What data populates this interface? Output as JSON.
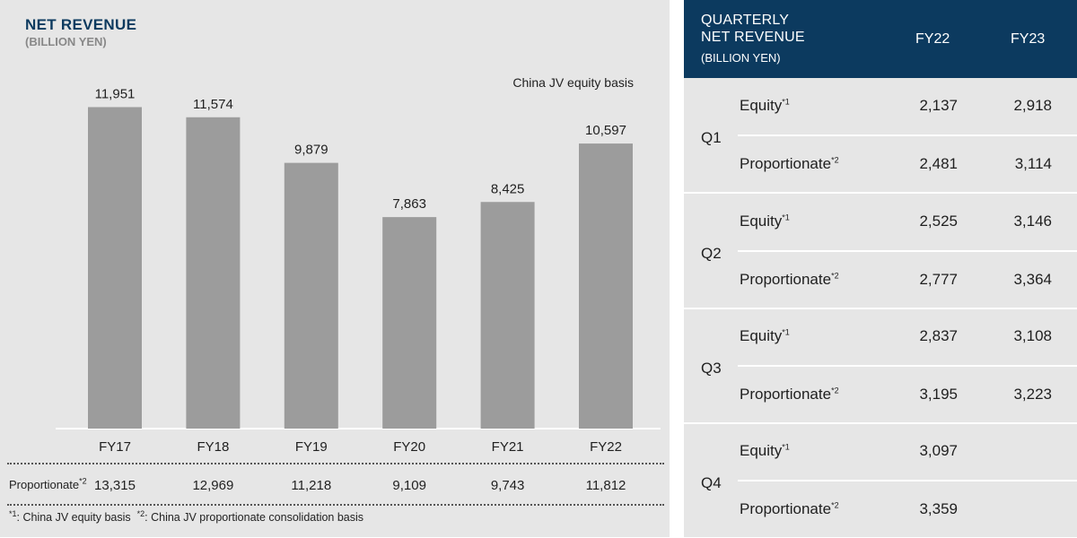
{
  "chart_data": {
    "type": "bar",
    "title": "NET REVENUE",
    "subtitle": "(BILLION YEN)",
    "annotation": "China JV equity basis",
    "categories": [
      "FY17",
      "FY18",
      "FY19",
      "FY20",
      "FY21",
      "FY22"
    ],
    "values": [
      11951,
      11574,
      9879,
      7863,
      8425,
      10597
    ],
    "value_labels": [
      "11,951",
      "11,574",
      "9,879",
      "7,863",
      "8,425",
      "10,597"
    ],
    "ylim": [
      0,
      13000
    ],
    "grid": false,
    "bar_color": "#9c9c9c",
    "proportionate_row": {
      "label": "Proportionate",
      "footnote_mark": "*2",
      "values": [
        "13,315",
        "12,969",
        "11,218",
        "9,109",
        "9,743",
        "11,812"
      ]
    },
    "footnotes": {
      "mark1": "*1",
      "text1": ": China JV equity basis",
      "mark2": "*2",
      "text2": ": China JV proportionate consolidation basis"
    }
  },
  "table": {
    "header_line1": "QUARTERLY",
    "header_line2": "NET REVENUE",
    "header_unit": "(BILLION YEN)",
    "columns": [
      "FY22",
      "FY23"
    ],
    "header_color": "#0c3a5f",
    "quarters": [
      {
        "label": "Q1",
        "rows": [
          {
            "label": "Equity",
            "mark": "*1",
            "fy22": "2,137",
            "fy23": "2,918"
          },
          {
            "label": "Proportionate",
            "mark": "*2",
            "fy22": "2,481",
            "fy23": "3,114"
          }
        ]
      },
      {
        "label": "Q2",
        "rows": [
          {
            "label": "Equity",
            "mark": "*1",
            "fy22": "2,525",
            "fy23": "3,146"
          },
          {
            "label": "Proportionate",
            "mark": "*2",
            "fy22": "2,777",
            "fy23": "3,364"
          }
        ]
      },
      {
        "label": "Q3",
        "rows": [
          {
            "label": "Equity",
            "mark": "*1",
            "fy22": "2,837",
            "fy23": "3,108"
          },
          {
            "label": "Proportionate",
            "mark": "*2",
            "fy22": "3,195",
            "fy23": "3,223"
          }
        ]
      },
      {
        "label": "Q4",
        "rows": [
          {
            "label": "Equity",
            "mark": "*1",
            "fy22": "3,097",
            "fy23": ""
          },
          {
            "label": "Proportionate",
            "mark": "*2",
            "fy22": "3,359",
            "fy23": ""
          }
        ]
      }
    ]
  }
}
